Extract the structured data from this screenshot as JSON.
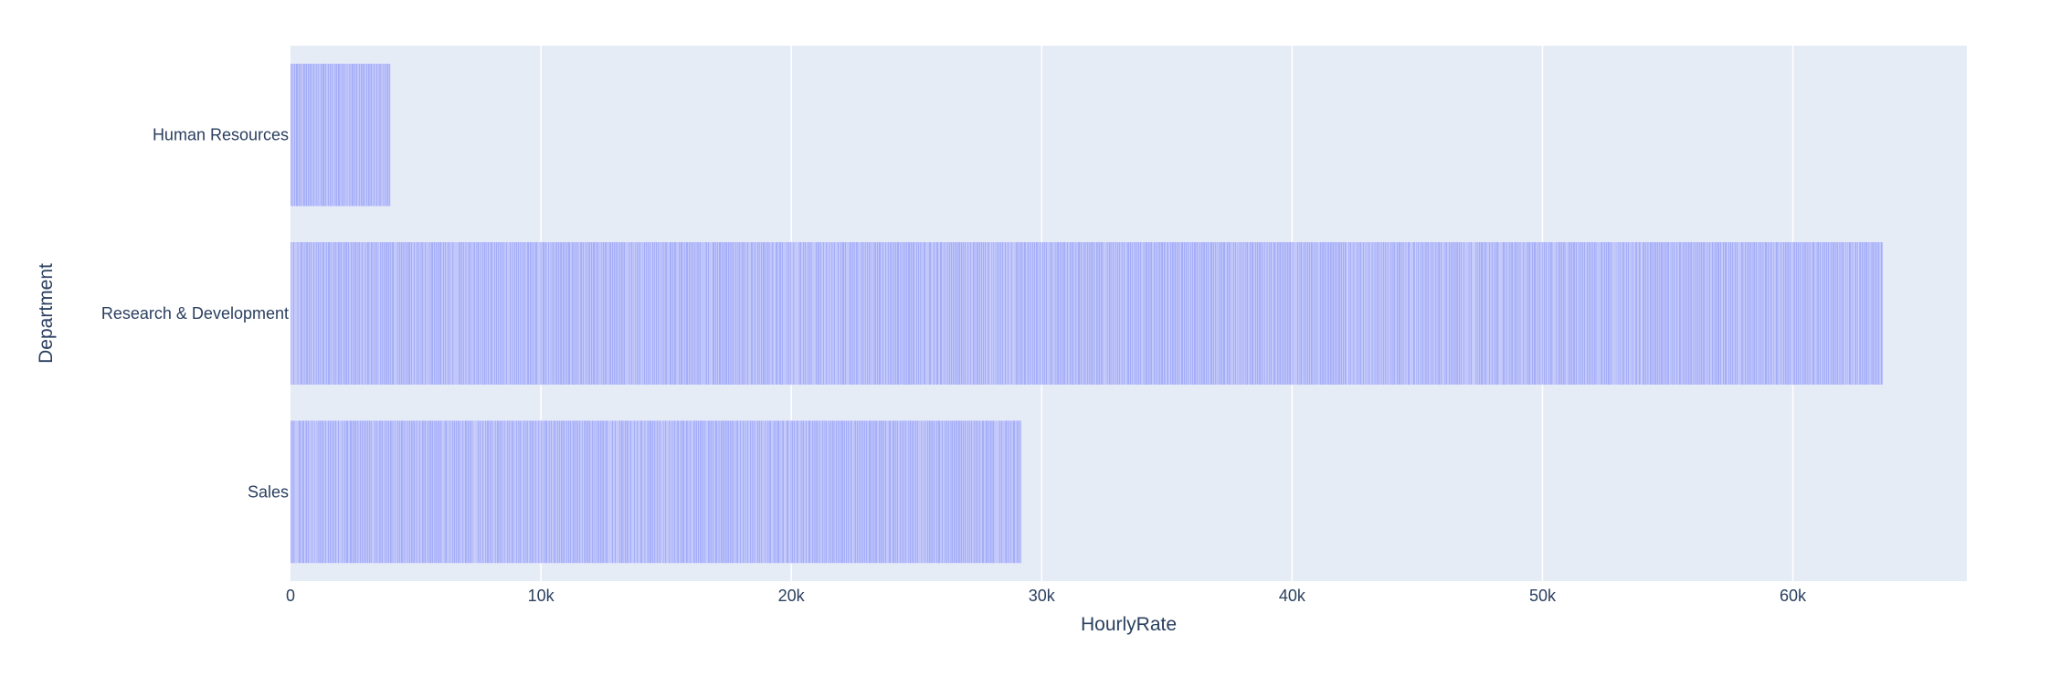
{
  "chart_data": {
    "type": "bar",
    "orientation": "horizontal",
    "title": "",
    "xlabel": "HourlyRate",
    "ylabel": "Department",
    "xlim": [
      0,
      66948
    ],
    "x_ticks": [
      0,
      10000,
      20000,
      30000,
      40000,
      50000,
      60000
    ],
    "x_tick_labels": [
      "0",
      "10k",
      "20k",
      "30k",
      "40k",
      "50k",
      "60k"
    ],
    "grid": true,
    "categories": [
      "Human Resources",
      "Research & Development",
      "Sales"
    ],
    "values": [
      4000,
      63600,
      29200
    ],
    "bar_note": "Each bar is a stack of many individual employee HourlyRate segments (stacked thin bars)",
    "colors": {
      "bar": "#636efa",
      "plot_background": "#e5ecf6",
      "grid": "#ffffff",
      "text": "#2a3f5f"
    }
  }
}
